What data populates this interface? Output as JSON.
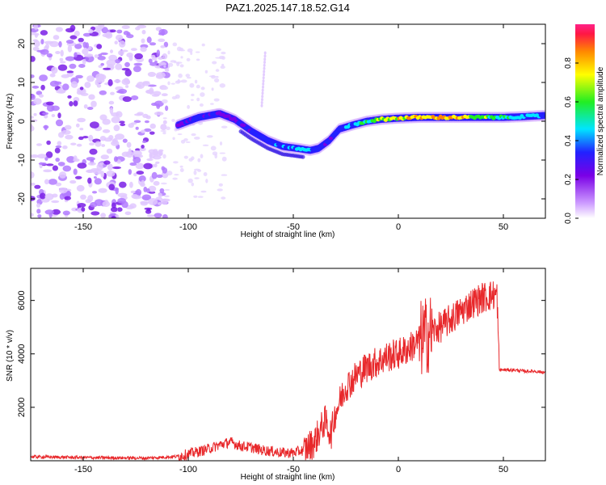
{
  "figure": {
    "title": "PAZ1.2025.147.18.52.G14"
  },
  "chart_data": [
    {
      "type": "heatmap",
      "xlabel": "Height of straight line (km)",
      "ylabel": "Frequency (Hz)",
      "xlim": [
        -175,
        70
      ],
      "ylim": [
        -25,
        25
      ],
      "x_ticks": [
        -150,
        -100,
        -50,
        0,
        50
      ],
      "y_ticks": [
        -20,
        -10,
        0,
        10,
        20
      ],
      "colorbar": {
        "label": "Normalized spectral amplitude",
        "range": [
          0,
          1
        ],
        "ticks": [
          0.0,
          0.2,
          0.4,
          0.6,
          0.8
        ],
        "colors": [
          "#ffffff",
          "#cc99ff",
          "#7a00e6",
          "#2222ff",
          "#00e5ff",
          "#22ee22",
          "#ffff00",
          "#ff8800",
          "#ff1744"
        ]
      },
      "ridge": {
        "x": [
          -105,
          -95,
          -85,
          -78,
          -70,
          -62,
          -55,
          -48,
          -42,
          -38,
          -33,
          -28,
          -22,
          -15,
          -8,
          0,
          10,
          20,
          30,
          40,
          50,
          60,
          70
        ],
        "freq": [
          -1,
          1,
          2,
          0.5,
          -2.5,
          -5,
          -6.5,
          -7,
          -7.5,
          -7,
          -5,
          -2,
          -1,
          0,
          0.5,
          0.8,
          1,
          1,
          1,
          1,
          1,
          1.2,
          1.5
        ],
        "amp": [
          0.3,
          0.4,
          0.3,
          0.3,
          0.35,
          0.4,
          0.45,
          0.5,
          0.5,
          0.4,
          0.35,
          0.4,
          0.5,
          0.6,
          0.7,
          0.8,
          0.85,
          0.9,
          0.85,
          0.7,
          0.6,
          0.5,
          0.45
        ]
      },
      "noise_region": {
        "x_range": [
          -175,
          -110
        ],
        "freq_range": [
          -25,
          25
        ]
      }
    },
    {
      "type": "line",
      "xlabel": "Height of straight line (km)",
      "ylabel": "SNR (10 * v/v)",
      "xlim": [
        -175,
        70
      ],
      "ylim": [
        0,
        7200
      ],
      "x_ticks": [
        -150,
        -100,
        -50,
        0,
        50
      ],
      "y_ticks": [
        2000,
        4000,
        6000
      ],
      "series": [
        {
          "color": "#e8282b",
          "x": [
            -175,
            -150,
            -120,
            -105,
            -100,
            -95,
            -90,
            -85,
            -80,
            -75,
            -70,
            -65,
            -60,
            -55,
            -50,
            -45,
            -40,
            -35,
            -32,
            -30,
            -28,
            -25,
            -22,
            -20,
            -15,
            -10,
            -5,
            0,
            5,
            10,
            15,
            20,
            25,
            30,
            35,
            40,
            45,
            47,
            48,
            55,
            60,
            65,
            70
          ],
          "y": [
            150,
            120,
            100,
            160,
            250,
            350,
            450,
            600,
            700,
            550,
            500,
            400,
            350,
            300,
            300,
            400,
            700,
            1500,
            1000,
            1800,
            2200,
            2800,
            3000,
            3200,
            3500,
            3700,
            3900,
            4000,
            4200,
            4500,
            4800,
            5000,
            5300,
            5600,
            5900,
            6100,
            6200,
            6200,
            3400,
            3400,
            3350,
            3350,
            3300
          ]
        }
      ]
    }
  ]
}
